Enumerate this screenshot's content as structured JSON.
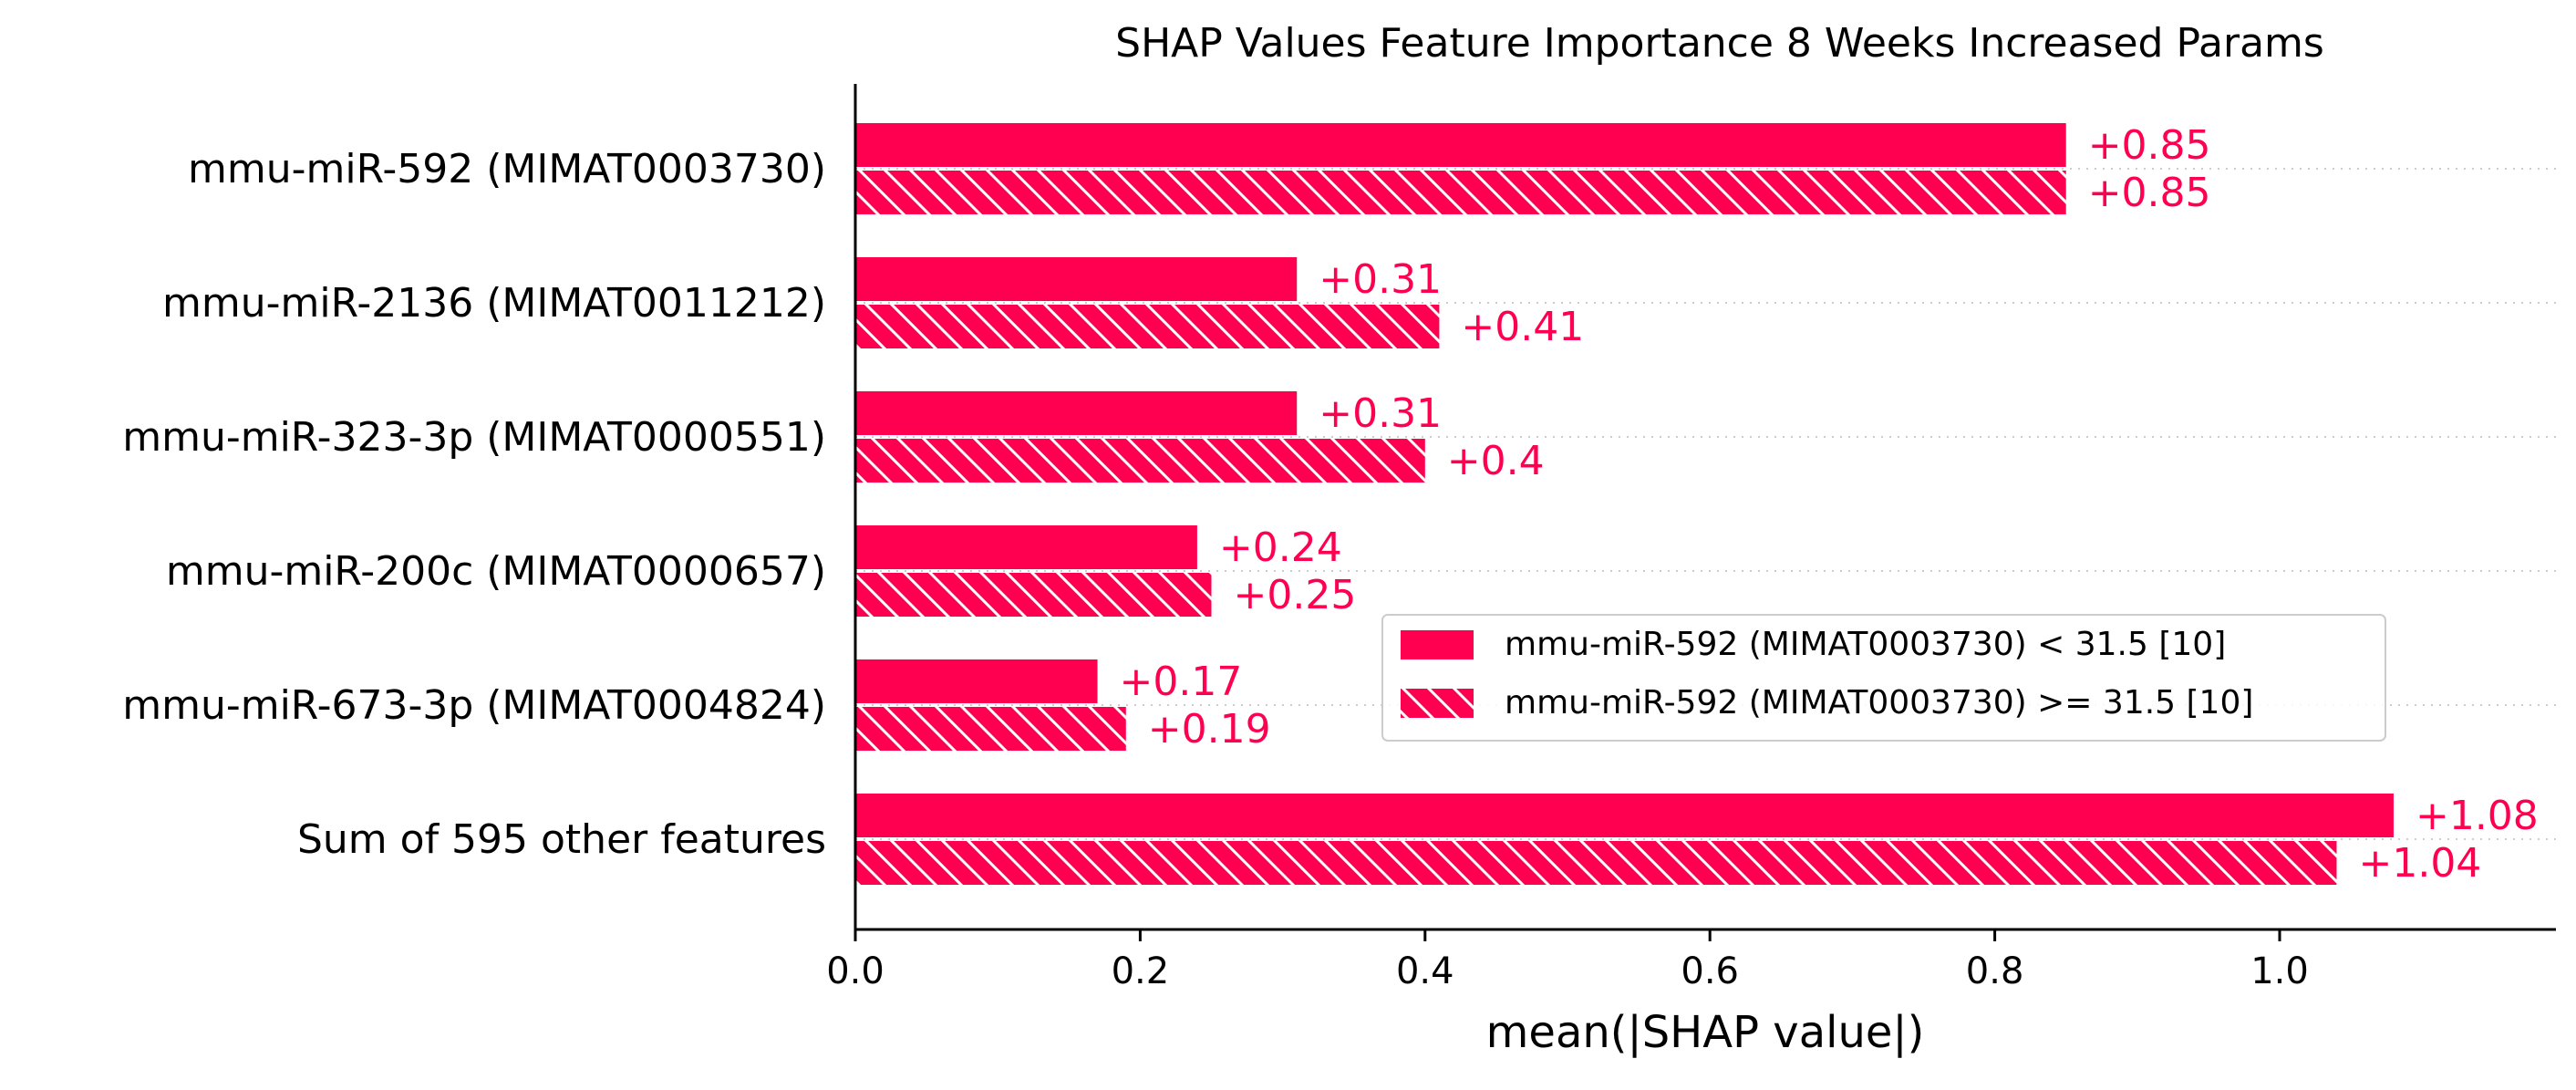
{
  "chart_data": {
    "type": "bar",
    "orientation": "horizontal",
    "title": "SHAP Values Feature Importance 8 Weeks Increased Params",
    "xlabel": "mean(|SHAP value|)",
    "ylabel": "",
    "xlim": [
      0,
      1.19
    ],
    "xticks": [
      0.0,
      0.2,
      0.4,
      0.6,
      0.8,
      1.0
    ],
    "xtick_labels": [
      "0.0",
      "0.2",
      "0.4",
      "0.6",
      "0.8",
      "1.0"
    ],
    "categories": [
      "mmu-miR-592 (MIMAT0003730)",
      "mmu-miR-2136 (MIMAT0011212)",
      "mmu-miR-323-3p (MIMAT0000551)",
      "mmu-miR-200c (MIMAT0000657)",
      "mmu-miR-673-3p (MIMAT0004824)",
      "Sum of 595 other features"
    ],
    "series": [
      {
        "name": "mmu-miR-592 (MIMAT0003730) < 31.5 [10]",
        "values": [
          0.85,
          0.31,
          0.31,
          0.24,
          0.17,
          1.08
        ],
        "value_labels": [
          "+0.85",
          "+0.31",
          "+0.31",
          "+0.24",
          "+0.17",
          "+1.08"
        ],
        "pattern": "solid"
      },
      {
        "name": "mmu-miR-592 (MIMAT0003730) >= 31.5 [10]",
        "values": [
          0.85,
          0.41,
          0.4,
          0.25,
          0.19,
          1.04
        ],
        "value_labels": [
          "+0.85",
          "+0.41",
          "+0.4",
          "+0.25",
          "+0.19",
          "+1.04"
        ],
        "pattern": "hatched"
      }
    ],
    "legend_position": "center-right",
    "grid": "dotted horizontal guide lines per feature",
    "colors": {
      "bar": "#ff0051",
      "label": "#ff0051",
      "axis": "#000000",
      "grid": "#cccccc"
    }
  }
}
